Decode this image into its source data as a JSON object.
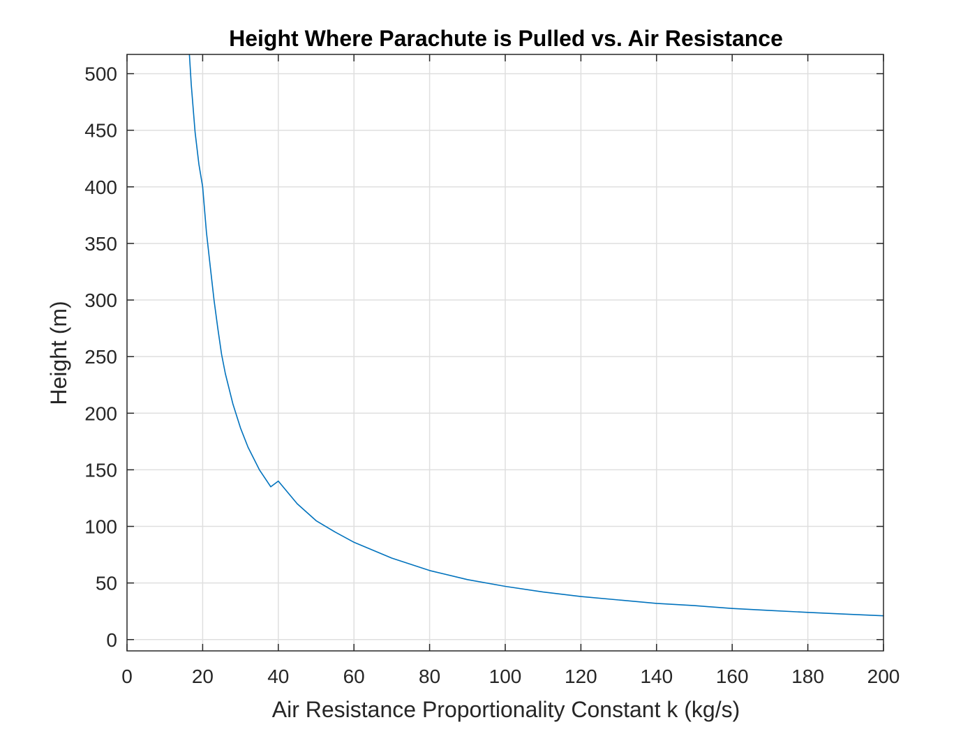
{
  "chart_data": {
    "type": "line",
    "title": "Height Where Parachute is Pulled vs. Air Resistance",
    "xlabel": "Air Resistance Proportionality Constant k (kg/s)",
    "ylabel": "Height (m)",
    "xlim": [
      0,
      200
    ],
    "ylim": [
      -10,
      517
    ],
    "xticks": [
      0,
      20,
      40,
      60,
      80,
      100,
      120,
      140,
      160,
      180,
      200
    ],
    "xtick_labels": [
      "0",
      "20",
      "40",
      "60",
      "80",
      "100",
      "120",
      "140",
      "160",
      "180",
      "200"
    ],
    "yticks": [
      0,
      50,
      100,
      150,
      200,
      250,
      300,
      350,
      400,
      450,
      500
    ],
    "ytick_labels": [
      "0",
      "50",
      "100",
      "150",
      "200",
      "250",
      "300",
      "350",
      "400",
      "450",
      "500"
    ],
    "grid": true,
    "legend": "none",
    "line_color": "#0072BD",
    "series": [
      {
        "x": [
          16.5,
          17,
          18,
          19,
          20,
          21,
          22,
          23,
          24,
          25,
          26,
          28,
          30,
          32,
          35,
          38,
          40,
          45,
          50,
          55,
          60,
          70,
          80,
          90,
          100,
          110,
          120,
          130,
          140,
          150,
          160,
          170,
          180,
          190,
          200
        ],
        "y": [
          517,
          490,
          448,
          420,
          400,
          360,
          330,
          300,
          275,
          252,
          235,
          208,
          187,
          170,
          150,
          135,
          140,
          120,
          105,
          95,
          86,
          72,
          61,
          53,
          47,
          42,
          38,
          35,
          32,
          30,
          27.5,
          25.7,
          24,
          22.5,
          21
        ]
      }
    ]
  }
}
